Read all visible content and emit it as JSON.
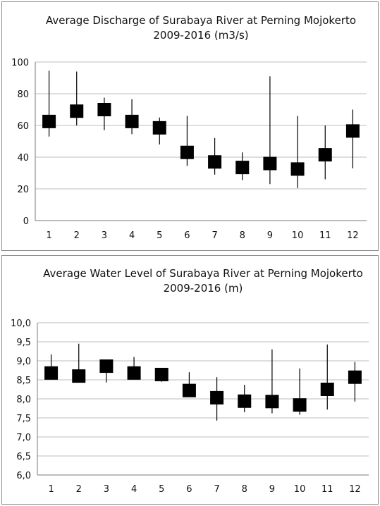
{
  "chart_data": [
    {
      "type": "scatter",
      "title": "Average Discharge  of Surabaya River at Perning  Mojokerto",
      "subtitle": "2009-2016 (m3/s)",
      "categories": [
        "1",
        "2",
        "3",
        "4",
        "5",
        "6",
        "7",
        "8",
        "9",
        "10",
        "11",
        "12"
      ],
      "yticks": [
        "0",
        "20",
        "40",
        "60",
        "80",
        "100"
      ],
      "ylim": [
        0,
        100
      ],
      "grid": true,
      "series": [
        {
          "avg": [
            62.5,
            69,
            70,
            62.5,
            58.5,
            43,
            37,
            33.5,
            36,
            32.5,
            41.5,
            56.5
          ],
          "max": [
            94.5,
            94,
            77.5,
            76.5,
            65,
            66,
            52,
            43,
            91,
            66,
            60,
            70
          ],
          "min": [
            53,
            60,
            57,
            54.5,
            48,
            34.5,
            29,
            25.5,
            23,
            20.5,
            26,
            33
          ]
        }
      ]
    },
    {
      "type": "scatter",
      "title": "Average Water Level of Surabaya River at Perning Mojokerto",
      "subtitle": "2009-2016 (m)",
      "categories": [
        "1",
        "2",
        "3",
        "4",
        "5",
        "6",
        "7",
        "8",
        "9",
        "10",
        "11",
        "12"
      ],
      "yticks": [
        "6,0",
        "6,5",
        "7,0",
        "7,5",
        "8,0",
        "8,5",
        "9,0",
        "9,5",
        "10,0"
      ],
      "ylim": [
        6.0,
        10.0
      ],
      "grid": true,
      "series": [
        {
          "avg": [
            8.68,
            8.6,
            8.86,
            8.68,
            8.64,
            8.22,
            8.03,
            7.94,
            7.93,
            7.84,
            8.25,
            8.57
          ],
          "max": [
            9.17,
            9.45,
            8.9,
            9.1,
            8.65,
            8.7,
            8.57,
            8.37,
            9.3,
            8.8,
            9.43,
            8.97
          ],
          "min": [
            8.55,
            8.5,
            8.43,
            8.55,
            8.45,
            8.05,
            7.43,
            7.65,
            7.62,
            7.58,
            7.72,
            7.93
          ]
        }
      ]
    }
  ]
}
